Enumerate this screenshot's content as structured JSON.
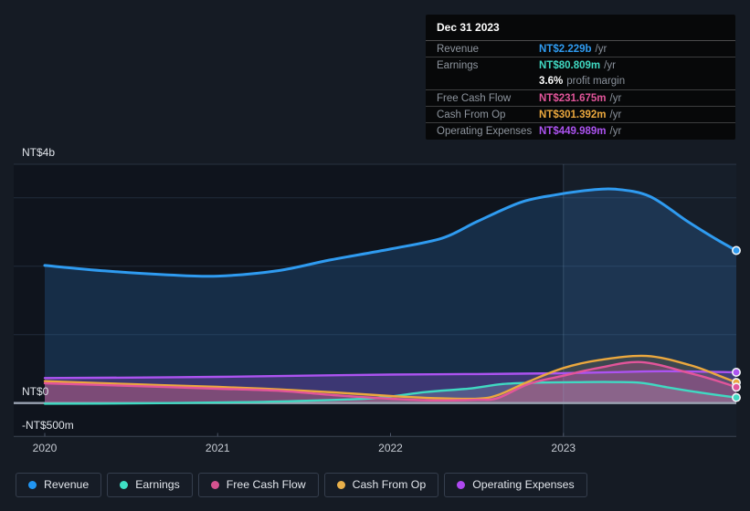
{
  "tooltip": {
    "date": "Dec 31 2023",
    "rows": [
      {
        "label": "Revenue",
        "value": "NT$2.229b",
        "suffix": "/yr",
        "color": "#2F9BF0",
        "divider": true
      },
      {
        "label": "Earnings",
        "value": "NT$80.809m",
        "suffix": "/yr",
        "color": "#40D9C2",
        "divider": true
      },
      {
        "label": "",
        "value": "3.6%",
        "suffix": "profit margin",
        "color": "#FFFFFF",
        "divider": false
      },
      {
        "label": "Free Cash Flow",
        "value": "NT$231.675m",
        "suffix": "/yr",
        "color": "#E2559A",
        "divider": true
      },
      {
        "label": "Cash From Op",
        "value": "NT$301.392m",
        "suffix": "/yr",
        "color": "#EBA83E",
        "divider": true
      },
      {
        "label": "Operating Expenses",
        "value": "NT$449.989m",
        "suffix": "/yr",
        "color": "#AC53F0",
        "divider": true
      }
    ]
  },
  "legend": {
    "items": [
      {
        "label": "Revenue",
        "color": "#2196F3"
      },
      {
        "label": "Earnings",
        "color": "#3FE0C5"
      },
      {
        "label": "Free Cash Flow",
        "color": "#D4528F"
      },
      {
        "label": "Cash From Op",
        "color": "#E9B04A"
      },
      {
        "label": "Operating Expenses",
        "color": "#AE48F0"
      }
    ]
  },
  "chart_data": {
    "type": "area",
    "unit": "NT$ millions",
    "x_axis": {
      "ticks": [
        "2020",
        "2021",
        "2022",
        "2023"
      ],
      "tick_years": [
        2020,
        2021,
        2022,
        2023
      ],
      "range_years": [
        2020,
        2024
      ]
    },
    "y_axis": {
      "labels": [
        "NT$4b",
        "NT$0",
        "-NT$500m"
      ],
      "gridline_values_m": [
        3000,
        2000,
        1000,
        0
      ],
      "range_m": [
        -500,
        4000
      ]
    },
    "highlight_from_year": 2023,
    "series": [
      {
        "name": "Revenue",
        "color": "#2F9BF0",
        "x": [
          2020,
          2020.35,
          2020.7,
          2021,
          2021.35,
          2021.65,
          2022,
          2022.3,
          2022.5,
          2022.75,
          2022.95,
          2023.15,
          2023.3,
          2023.5,
          2023.72,
          2023.88,
          2024
        ],
        "values": [
          2010,
          1930,
          1875,
          1855,
          1935,
          2090,
          2250,
          2410,
          2650,
          2930,
          3040,
          3110,
          3125,
          3020,
          2650,
          2400,
          2229
        ]
      },
      {
        "name": "Earnings",
        "color": "#40D9C2",
        "x": [
          2020,
          2020.5,
          2021,
          2021.4,
          2021.9,
          2022.2,
          2022.45,
          2022.65,
          2022.85,
          2023.1,
          2023.3,
          2023.45,
          2023.6,
          2023.8,
          2024
        ],
        "values": [
          -10,
          -5,
          8,
          25,
          70,
          160,
          210,
          278,
          298,
          306,
          307,
          295,
          230,
          150,
          80.809
        ]
      },
      {
        "name": "Free Cash Flow",
        "color": "#E2559A",
        "x": [
          2020,
          2020.5,
          2021,
          2021.35,
          2021.67,
          2022,
          2022.25,
          2022.5,
          2022.62,
          2022.8,
          2023,
          2023.2,
          2023.45,
          2023.72,
          2023.9,
          2024
        ],
        "values": [
          289,
          250,
          209,
          180,
          116,
          63,
          38,
          48,
          72,
          280,
          400,
          512,
          598,
          445,
          316,
          231.675
        ]
      },
      {
        "name": "Cash From Op",
        "color": "#EBA83E",
        "x": [
          2020,
          2020.5,
          2021,
          2021.35,
          2021.67,
          2022,
          2022.25,
          2022.5,
          2022.62,
          2022.8,
          2023,
          2023.2,
          2023.48,
          2023.73,
          2023.9,
          2024
        ],
        "values": [
          320,
          276,
          236,
          200,
          156,
          103,
          72,
          64,
          116,
          316,
          512,
          625,
          688,
          556,
          400,
          301.392
        ]
      },
      {
        "name": "Operating Expenses",
        "color": "#AC53F0",
        "x": [
          2020,
          2020.5,
          2021,
          2021.5,
          2022,
          2022.5,
          2023,
          2023.3,
          2023.6,
          2024
        ],
        "values": [
          365,
          372,
          383,
          400,
          416,
          424,
          436,
          452,
          466,
          449.989
        ]
      }
    ]
  }
}
